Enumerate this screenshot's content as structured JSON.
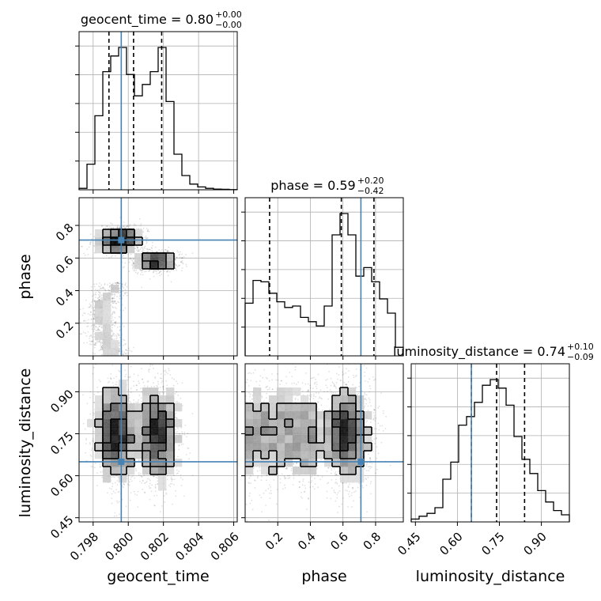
{
  "chart_data": {
    "type": "corner",
    "parameters": [
      "geocent_time",
      "phase",
      "luminosity_distance"
    ],
    "truths": [
      0.7996,
      0.71,
      0.65
    ],
    "truth_color": "#4682b4",
    "grid": true,
    "titles": [
      {
        "label": "geocent_time",
        "value": "0.80",
        "plus": "+0.00",
        "minus": "−0.00"
      },
      {
        "label": "phase",
        "value": "0.59",
        "plus": "+0.20",
        "minus": "−0.42"
      },
      {
        "label": "luminosity_distance",
        "value": "0.74",
        "plus": "+0.10",
        "minus": "−0.09"
      }
    ],
    "axes": {
      "geocent_time": {
        "range": [
          0.7972,
          0.8062
        ],
        "ticks": [
          0.798,
          0.8,
          0.802,
          0.804,
          0.806
        ],
        "tick_labels": [
          "0.798",
          "0.800",
          "0.802",
          "0.804",
          "0.806"
        ]
      },
      "phase": {
        "range": [
          0.0,
          0.97
        ],
        "ticks": [
          0.2,
          0.4,
          0.6,
          0.8
        ],
        "tick_labels": [
          "0.2",
          "0.4",
          "0.6",
          "0.8"
        ]
      },
      "luminosity_distance": {
        "range": [
          0.435,
          1.0
        ],
        "ticks": [
          0.45,
          0.6,
          0.75,
          0.9
        ],
        "tick_labels": [
          "0.45",
          "0.60",
          "0.75",
          "0.90"
        ]
      }
    },
    "marginals": [
      {
        "parameter": "geocent_time",
        "quantiles": [
          0.7989,
          0.8003,
          0.8019
        ],
        "bin_edges": [
          0.7972,
          0.79765,
          0.7981,
          0.79855,
          0.799,
          0.79945,
          0.7999,
          0.80035,
          0.8008,
          0.80125,
          0.8017,
          0.80215,
          0.8026,
          0.80305,
          0.8035,
          0.80395,
          0.8044,
          0.80485,
          0.8053,
          0.80575,
          0.8062
        ],
        "heights": [
          0.01,
          0.18,
          0.52,
          0.83,
          0.94,
          1.0,
          0.81,
          0.66,
          0.74,
          0.83,
          1.0,
          0.62,
          0.25,
          0.1,
          0.04,
          0.02,
          0.01,
          0.005,
          0.003,
          0.001
        ]
      },
      {
        "parameter": "phase",
        "quantiles": [
          0.15,
          0.59,
          0.79
        ],
        "bin_edges": [
          0.0,
          0.0485,
          0.097,
          0.1455,
          0.194,
          0.2425,
          0.291,
          0.3395,
          0.388,
          0.4365,
          0.485,
          0.5335,
          0.582,
          0.6305,
          0.679,
          0.7275,
          0.776,
          0.8245,
          0.873,
          0.9215,
          0.97
        ],
        "heights": [
          0.37,
          0.53,
          0.52,
          0.44,
          0.38,
          0.34,
          0.35,
          0.27,
          0.24,
          0.21,
          0.35,
          0.85,
          1.0,
          0.85,
          0.56,
          0.62,
          0.52,
          0.4,
          0.3,
          0.06
        ]
      },
      {
        "parameter": "luminosity_distance",
        "quantiles": [
          0.65,
          0.74,
          0.84
        ],
        "bin_edges": [
          0.435,
          0.46325,
          0.4915,
          0.51975,
          0.548,
          0.57625,
          0.6045,
          0.63275,
          0.661,
          0.68925,
          0.7175,
          0.74575,
          0.774,
          0.80225,
          0.8305,
          0.85875,
          0.887,
          0.91525,
          0.9435,
          0.97175,
          1.0
        ],
        "heights": [
          0.02,
          0.04,
          0.06,
          0.1,
          0.3,
          0.42,
          0.68,
          0.74,
          0.84,
          0.96,
          1.0,
          0.94,
          0.82,
          0.6,
          0.44,
          0.34,
          0.22,
          0.14,
          0.08,
          0.05
        ]
      }
    ]
  }
}
